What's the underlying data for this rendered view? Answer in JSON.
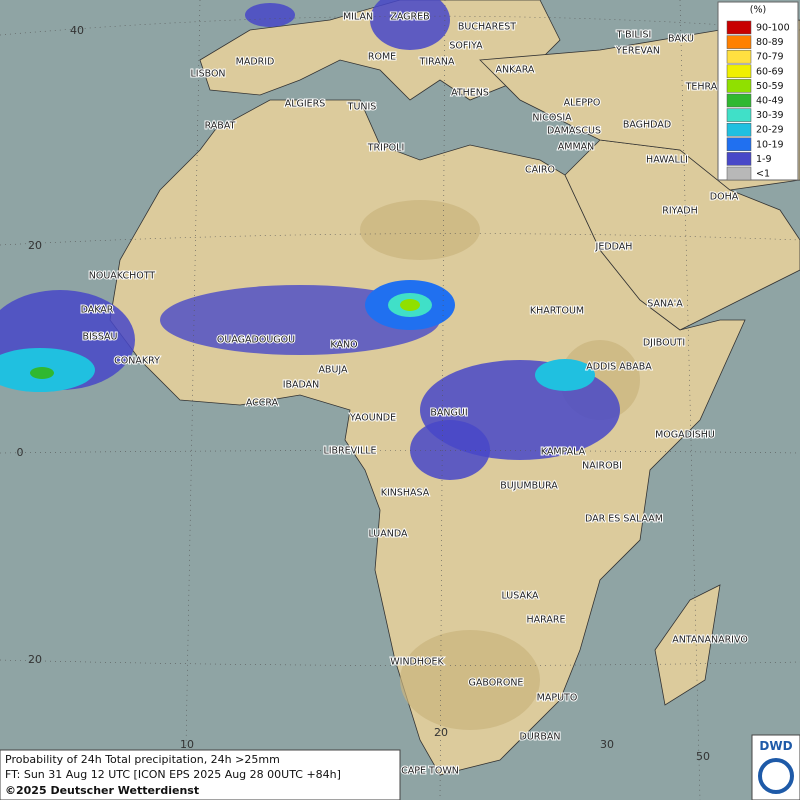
{
  "map": {
    "cities": [
      "MILAN",
      "ZAGREB",
      "BUCHAREST",
      "SOFIYA",
      "ROME",
      "TIRANA",
      "ATHENS",
      "ANKARA",
      "T'BILISI",
      "BAKU",
      "YEREVAN",
      "TEHRAN",
      "LISBON",
      "MADRID",
      "ALGIERS",
      "TUNIS",
      "RABAT",
      "TRIPOLI",
      "NICOSIA",
      "ALEPPO",
      "BAGHDAD",
      "DAMASCUS",
      "AMMAN",
      "CAIRO",
      "HAWALLI",
      "DOHA",
      "RIYADH",
      "JEDDAH",
      "NOUAKCHOTT",
      "DAKAR",
      "BISSAU",
      "CONAKRY",
      "OUAGADOUGOU",
      "KANO",
      "ABUJA",
      "IBADAN",
      "ACCRA",
      "KHARTOUM",
      "SANA'A",
      "DJIBOUTI",
      "ADDIS ABABA",
      "YAOUNDE",
      "BANGUI",
      "LIBREVILLE",
      "MOGADISHU",
      "KAMPALA",
      "NAIROBI",
      "KINSHASA",
      "BUJUMBURA",
      "DAR ES SALAAM",
      "LUANDA",
      "LUSAKA",
      "HARARE",
      "ANTANANARIVO",
      "WINDHOEK",
      "GABORONE",
      "MAPUTO",
      "DURBAN",
      "CAPE TOWN"
    ],
    "grid_labels": [
      "40",
      "20",
      "0",
      "20",
      "10",
      "20",
      "30",
      "50"
    ]
  },
  "legend": {
    "unit": "(%)",
    "classes": [
      {
        "label": "90-100",
        "color": "#c80000"
      },
      {
        "label": "80-89",
        "color": "#ff8000"
      },
      {
        "label": "70-79",
        "color": "#ffe040"
      },
      {
        "label": "60-69",
        "color": "#f0f000"
      },
      {
        "label": "50-59",
        "color": "#90e000"
      },
      {
        "label": "40-49",
        "color": "#30b830"
      },
      {
        "label": "30-39",
        "color": "#40e0c8"
      },
      {
        "label": "20-29",
        "color": "#20c0e0"
      },
      {
        "label": "10-19",
        "color": "#2070f0"
      },
      {
        "label": "1-9",
        "color": "#4848c8"
      },
      {
        "label": "<1",
        "color": "#b8b8b8"
      }
    ]
  },
  "footer": {
    "line1": "Probability of 24h Total precipitation, 24h >25mm",
    "line2": "FT: Sun 31 Aug 12 UTC [ICON EPS 2025 Aug 28 00UTC +84h]",
    "line3": "©2025 Deutscher Wetterdienst"
  },
  "logo": "DWD"
}
